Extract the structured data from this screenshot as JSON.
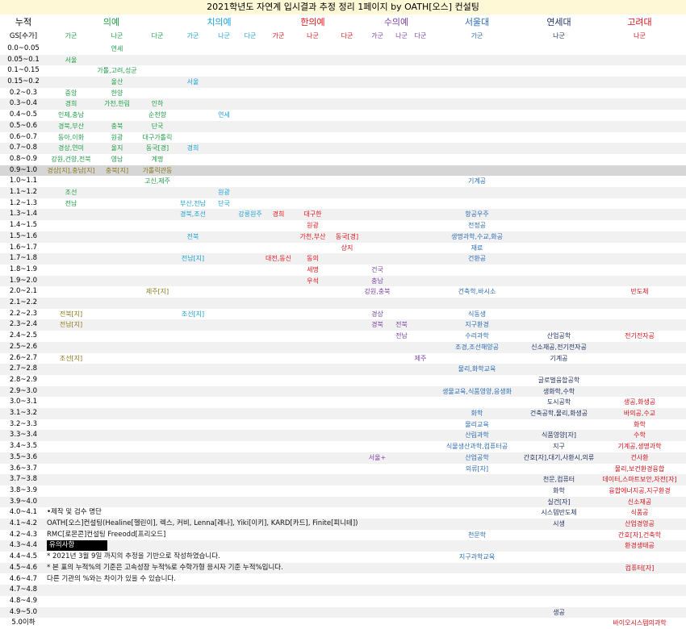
{
  "title": "2021학년도 자연계 입시결과 추정 정리 1페이지 by OATH[오스] 컨설팅",
  "header": {
    "label_top": "누적",
    "label_sub": "GS[수가]"
  },
  "groups": [
    {
      "name": "의예",
      "color": "#1f9e46",
      "subs": [
        "가군",
        "나군",
        "다군"
      ]
    },
    {
      "name": "치의예",
      "color": "#1ba1d4",
      "subs": [
        "가군",
        "나군",
        "다군"
      ]
    },
    {
      "name": "한의예",
      "color": "#e3131b",
      "subs": [
        "가군",
        "나군",
        "다군"
      ]
    },
    {
      "name": "수의예",
      "color": "#7b3fa6",
      "subs": [
        "가군",
        "나군",
        "다군"
      ]
    },
    {
      "name": "서울대",
      "color": "#2b6cb5",
      "subs": [
        "가군"
      ]
    },
    {
      "name": "연세대",
      "color": "#1c2f5e",
      "subs": [
        "나군"
      ]
    },
    {
      "name": "고려대",
      "color": "#d4121a",
      "subs": [
        "나군"
      ]
    }
  ],
  "rows": [
    {
      "gs": "0.0~0.05",
      "entries": [
        {
          "col": 2,
          "text": "연세"
        }
      ]
    },
    {
      "gs": "0.05~0.1",
      "entries": [
        {
          "col": 1,
          "text": "서울"
        }
      ]
    },
    {
      "gs": "0.1~0.15",
      "entries": [
        {
          "col": 2,
          "text": "가톨,고려,성균"
        }
      ]
    },
    {
      "gs": "0.15~0.2",
      "entries": [
        {
          "col": 2,
          "text": "울산"
        },
        {
          "col": 4,
          "text": "서울"
        }
      ]
    },
    {
      "gs": "0.2~0.3",
      "entries": [
        {
          "col": 1,
          "text": "중앙"
        },
        {
          "col": 2,
          "text": "한양"
        }
      ]
    },
    {
      "gs": "0.3~0.4",
      "entries": [
        {
          "col": 1,
          "text": "경희"
        },
        {
          "col": 2,
          "text": "가천,한림"
        },
        {
          "col": 3,
          "text": "인하"
        }
      ]
    },
    {
      "gs": "0.4~0.5",
      "entries": [
        {
          "col": 1,
          "text": "인제,충남"
        },
        {
          "col": 3,
          "text": "순천향"
        },
        {
          "col": 5,
          "text": "연세"
        }
      ]
    },
    {
      "gs": "0.5~0.6",
      "entries": [
        {
          "col": 1,
          "text": "경북,부산"
        },
        {
          "col": 2,
          "text": "충북"
        },
        {
          "col": 3,
          "text": "단국"
        }
      ]
    },
    {
      "gs": "0.6~0.7",
      "entries": [
        {
          "col": 1,
          "text": "동아,이화"
        },
        {
          "col": 2,
          "text": "원광"
        },
        {
          "col": 3,
          "text": "대구가톨릭"
        }
      ]
    },
    {
      "gs": "0.7~0.8",
      "entries": [
        {
          "col": 1,
          "text": "경상,연미"
        },
        {
          "col": 2,
          "text": "울지"
        },
        {
          "col": 3,
          "text": "동국[경]"
        },
        {
          "col": 4,
          "text": "경희"
        }
      ]
    },
    {
      "gs": "0.8~0.9",
      "entries": [
        {
          "col": 1,
          "text": "강원,건양,전북"
        },
        {
          "col": 2,
          "text": "영남"
        },
        {
          "col": 3,
          "text": "계명"
        }
      ]
    },
    {
      "gs": "0.9~1.0",
      "highlight": true,
      "entries": [
        {
          "col": 1,
          "text": "경상[지],충남[지]",
          "color": "#8a7a1e"
        },
        {
          "col": 2,
          "text": "충북[지]",
          "color": "#8a7a1e"
        },
        {
          "col": 3,
          "text": "가톨릭관동",
          "color": "#8a7a1e"
        }
      ]
    },
    {
      "gs": "1.0~1.1",
      "entries": [
        {
          "col": 3,
          "text": "고신,제주"
        },
        {
          "col": 13,
          "text": "기계공"
        }
      ]
    },
    {
      "gs": "1.1~1.2",
      "entries": [
        {
          "col": 1,
          "text": "조선"
        },
        {
          "col": 5,
          "text": "원광"
        }
      ]
    },
    {
      "gs": "1.2~1.3",
      "entries": [
        {
          "col": 1,
          "text": "전남"
        },
        {
          "col": 4,
          "text": "부산,전남"
        },
        {
          "col": 5,
          "text": "단국"
        }
      ]
    },
    {
      "gs": "1.3~1.4",
      "entries": [
        {
          "col": 4,
          "text": "경북,조선"
        },
        {
          "col": 6,
          "text": "강릉원주"
        },
        {
          "col": 7,
          "text": "경희"
        },
        {
          "col": 8,
          "text": "대구한"
        },
        {
          "col": 13,
          "text": "항공우주"
        }
      ]
    },
    {
      "gs": "1.4~1.5",
      "entries": [
        {
          "col": 8,
          "text": "원광"
        },
        {
          "col": 13,
          "text": "전정공"
        }
      ]
    },
    {
      "gs": "1.5~1.6",
      "entries": [
        {
          "col": 4,
          "text": "전북"
        },
        {
          "col": 8,
          "text": "가천,부산"
        },
        {
          "col": 9,
          "text": "동국[경]"
        },
        {
          "col": 13,
          "text": "생명과학,수교,화공"
        }
      ]
    },
    {
      "gs": "1.6~1.7",
      "entries": [
        {
          "col": 9,
          "text": "상지"
        },
        {
          "col": 13,
          "text": "재료"
        }
      ]
    },
    {
      "gs": "1.7~1.8",
      "entries": [
        {
          "col": 4,
          "text": "전남[지]"
        },
        {
          "col": 7,
          "text": "대전,동신"
        },
        {
          "col": 8,
          "text": "동의"
        },
        {
          "col": 13,
          "text": "건환공"
        }
      ]
    },
    {
      "gs": "1.8~1.9",
      "entries": [
        {
          "col": 8,
          "text": "세명"
        },
        {
          "col": 10,
          "text": "건국"
        }
      ]
    },
    {
      "gs": "1.9~2.0",
      "entries": [
        {
          "col": 8,
          "text": "우석"
        },
        {
          "col": 10,
          "text": "충남"
        }
      ]
    },
    {
      "gs": "2.0~2.1",
      "entries": [
        {
          "col": 3,
          "text": "제주[지]",
          "color": "#8a7a1e"
        },
        {
          "col": 10,
          "text": "강원,충북"
        },
        {
          "col": 13,
          "text": "건축학,바시소"
        },
        {
          "col": 15,
          "text": "반도체"
        }
      ]
    },
    {
      "gs": "2.1~2.2",
      "entries": []
    },
    {
      "gs": "2.2~2.3",
      "entries": [
        {
          "col": 1,
          "text": "전북[지]",
          "color": "#8a7a1e"
        },
        {
          "col": 4,
          "text": "조선[지]"
        },
        {
          "col": 10,
          "text": "경상"
        },
        {
          "col": 13,
          "text": "식동생"
        }
      ]
    },
    {
      "gs": "2.3~2.4",
      "entries": [
        {
          "col": 1,
          "text": "전남[지]",
          "color": "#8a7a1e"
        },
        {
          "col": 10,
          "text": "경북"
        },
        {
          "col": 11,
          "text": "전북"
        },
        {
          "col": 13,
          "text": "지구환경"
        }
      ]
    },
    {
      "gs": "2.4~2.5",
      "entries": [
        {
          "col": 11,
          "text": "전남"
        },
        {
          "col": 13,
          "text": "수리과학"
        },
        {
          "col": 14,
          "text": "산업공학"
        },
        {
          "col": 15,
          "text": "전기전자공"
        }
      ]
    },
    {
      "gs": "2.5~2.6",
      "entries": [
        {
          "col": 13,
          "text": "조경,조선해양공"
        },
        {
          "col": 14,
          "text": "신소재공,전기전자공"
        }
      ]
    },
    {
      "gs": "2.6~2.7",
      "entries": [
        {
          "col": 1,
          "text": "조선[지]",
          "color": "#8a7a1e"
        },
        {
          "col": 12,
          "text": "제주"
        },
        {
          "col": 14,
          "text": "기계공"
        }
      ]
    },
    {
      "gs": "2.7~2.8",
      "entries": [
        {
          "col": 13,
          "text": "물리,화학교육"
        }
      ]
    },
    {
      "gs": "2.8~2.9",
      "entries": [
        {
          "col": 14,
          "text": "글로벌융합공학"
        }
      ]
    },
    {
      "gs": "2.9~3.0",
      "entries": [
        {
          "col": 13,
          "text": "생물교육,식품영양,응생화"
        },
        {
          "col": 14,
          "text": "생화학,수학"
        }
      ]
    },
    {
      "gs": "3.0~3.1",
      "entries": [
        {
          "col": 14,
          "text": "도시공학"
        },
        {
          "col": 15,
          "text": "생공,화생공"
        }
      ]
    },
    {
      "gs": "3.1~3.2",
      "entries": [
        {
          "col": 13,
          "text": "화학"
        },
        {
          "col": 14,
          "text": "건축공학,물리,화생공"
        },
        {
          "col": 15,
          "text": "바의공,수교"
        }
      ]
    },
    {
      "gs": "3.2~3.3",
      "entries": [
        {
          "col": 13,
          "text": "물리교육"
        },
        {
          "col": 15,
          "text": "화학"
        }
      ]
    },
    {
      "gs": "3.3~3.4",
      "entries": [
        {
          "col": 13,
          "text": "산림과학"
        },
        {
          "col": 14,
          "text": "식품영양[자]"
        },
        {
          "col": 15,
          "text": "수학"
        }
      ]
    },
    {
      "gs": "3.4~3.5",
      "entries": [
        {
          "col": 13,
          "text": "식물생산과학,컴퓨터공"
        },
        {
          "col": 14,
          "text": "지구"
        },
        {
          "col": 15,
          "text": "기계공,생명과학"
        }
      ]
    },
    {
      "gs": "3.5~3.6",
      "entries": [
        {
          "col": 10,
          "text": "서울+"
        },
        {
          "col": 13,
          "text": "산업공학"
        },
        {
          "col": 14,
          "text": "간호[자],대기,사환시,의류"
        },
        {
          "col": 15,
          "text": "건사환"
        }
      ]
    },
    {
      "gs": "3.6~3.7",
      "entries": [
        {
          "col": 13,
          "text": "의류[자]"
        },
        {
          "col": 15,
          "text": "물리,보건환경융합"
        }
      ]
    },
    {
      "gs": "3.7~3.8",
      "entries": [
        {
          "col": 14,
          "text": "천문,컴퓨터"
        },
        {
          "col": 15,
          "text": "데이터,스마트보안,자전[자]"
        }
      ]
    },
    {
      "gs": "3.8~3.9",
      "entries": [
        {
          "col": 14,
          "text": "화학"
        },
        {
          "col": 15,
          "text": "융합에너지공,지구환경"
        }
      ]
    },
    {
      "gs": "3.9~4.0",
      "entries": [
        {
          "col": 14,
          "text": "실건[자]"
        },
        {
          "col": 15,
          "text": "신소재공"
        }
      ]
    },
    {
      "gs": "4.0~4.1",
      "note": "•제작 및 검수 명단",
      "entries": [
        {
          "col": 14,
          "text": "시스템반도체"
        },
        {
          "col": 15,
          "text": "식품공"
        }
      ]
    },
    {
      "gs": "4.1~4.2",
      "note": "OATH[오스]컨설팅(Healine[헬린이], 렉스, 커비, Lenna[레나], Yiki[이키], KARD[카드], Finite[피니테])",
      "entries": [
        {
          "col": 14,
          "text": "시생"
        },
        {
          "col": 15,
          "text": "산업경영공"
        }
      ]
    },
    {
      "gs": "4.2~4.3",
      "note": "RMC[로몬콘]컨설팅 Freeodd[프리오드]",
      "entries": [
        {
          "col": 13,
          "text": "천문학"
        },
        {
          "col": 15,
          "text": "간호[자],건축학"
        }
      ]
    },
    {
      "gs": "4.3~4.4",
      "note": "유의사항",
      "note_box": true,
      "entries": [
        {
          "col": 15,
          "text": "환경생태공"
        }
      ]
    },
    {
      "gs": "4.4~4.5",
      "note": "* 2021년 3월 9일 까지의 추정을 기반으로 작성하였습니다.",
      "entries": [
        {
          "col": 13,
          "text": "지구과학교육"
        }
      ]
    },
    {
      "gs": "4.5~4.6",
      "note": "* 본 표의 누적%의 기준은 고속성장 누적%로 수학가형 응시자 기준 누적%입니다.",
      "entries": [
        {
          "col": 15,
          "text": "컴퓨터[자]"
        }
      ]
    },
    {
      "gs": "4.6~4.7",
      "note": "다른 기관의 %와는 차이가 있을 수 있습니다.",
      "entries": []
    },
    {
      "gs": "4.7~4.8",
      "entries": []
    },
    {
      "gs": "4.8~4.9",
      "entries": []
    },
    {
      "gs": "4.9~5.0",
      "entries": [
        {
          "col": 14,
          "text": "생공"
        }
      ]
    },
    {
      "gs": "5.0이하",
      "entries": [
        {
          "col": 15,
          "text": "바이오시스템의과학"
        }
      ]
    }
  ]
}
